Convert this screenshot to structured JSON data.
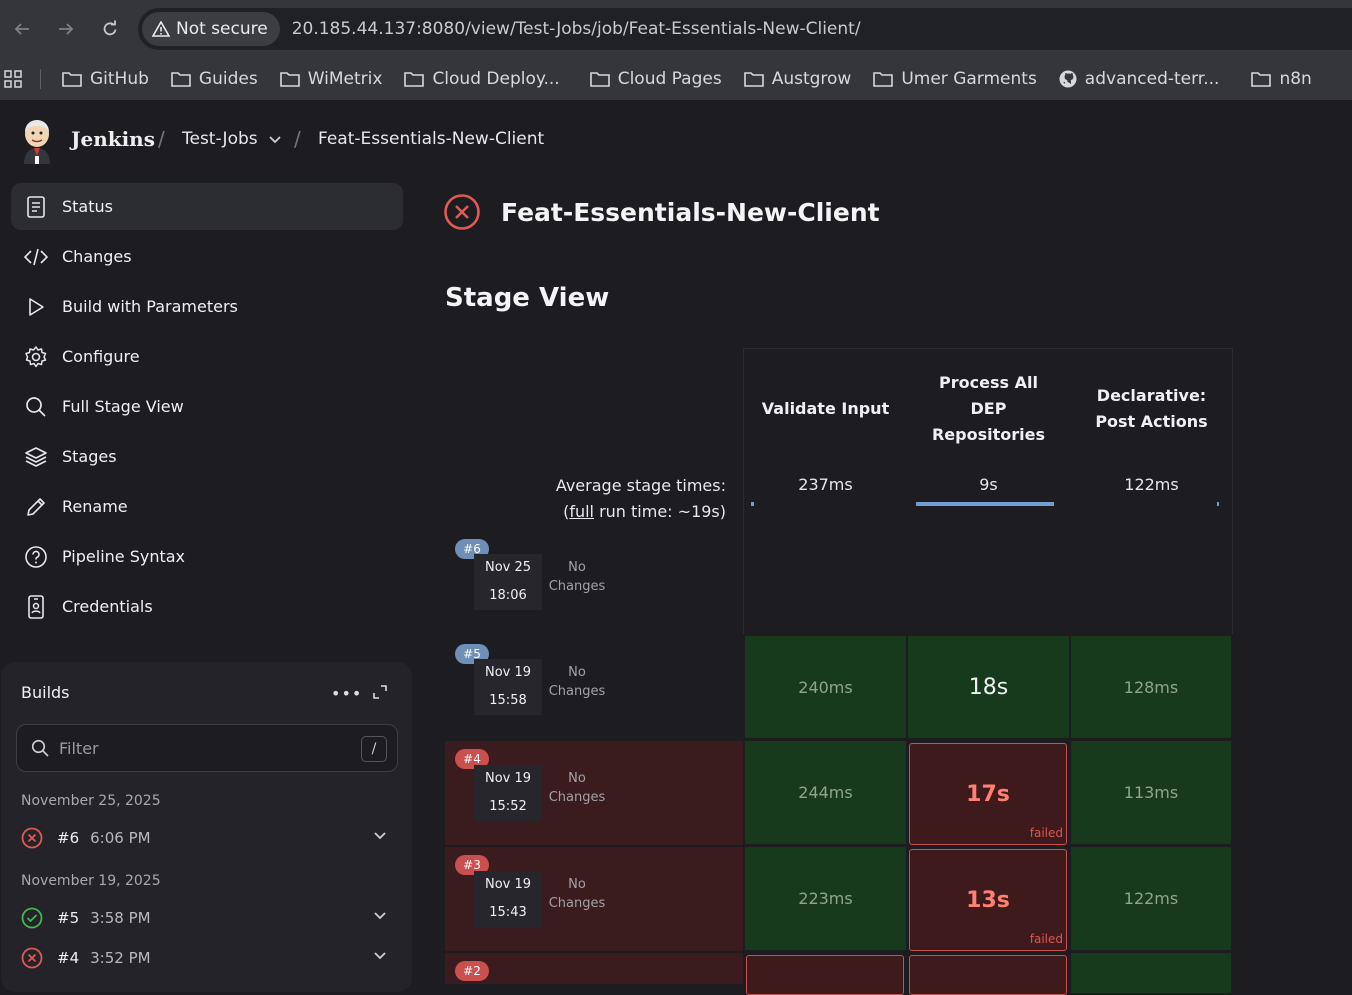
{
  "browser": {
    "security_label": "Not secure",
    "url": "20.185.44.137:8080/view/Test-Jobs/job/Feat-Essentials-New-Client/",
    "bookmarks": [
      "GitHub",
      "Guides",
      "WiMetrix",
      "Cloud Deploy...",
      "Cloud Pages",
      "Austgrow",
      "Umer Garments",
      "advanced-terr...",
      "n8n"
    ]
  },
  "header": {
    "app_name": "Jenkins",
    "breadcrumb": [
      "Test-Jobs",
      "Feat-Essentials-New-Client"
    ]
  },
  "sidebar": {
    "items": [
      {
        "label": "Status",
        "icon": "status-icon"
      },
      {
        "label": "Changes",
        "icon": "code-icon"
      },
      {
        "label": "Build with Parameters",
        "icon": "play-icon"
      },
      {
        "label": "Configure",
        "icon": "gear-icon"
      },
      {
        "label": "Full Stage View",
        "icon": "search-icon"
      },
      {
        "label": "Stages",
        "icon": "layers-icon"
      },
      {
        "label": "Rename",
        "icon": "pencil-icon"
      },
      {
        "label": "Pipeline Syntax",
        "icon": "help-icon"
      },
      {
        "label": "Credentials",
        "icon": "credentials-icon"
      }
    ]
  },
  "builds": {
    "title": "Builds",
    "filter_placeholder": "Filter",
    "filter_shortcut": "/",
    "groups": [
      {
        "date": "November 25, 2025",
        "runs": [
          {
            "num": "#6",
            "time": "6:06 PM",
            "status": "failed"
          }
        ]
      },
      {
        "date": "November 19, 2025",
        "runs": [
          {
            "num": "#5",
            "time": "3:58 PM",
            "status": "success"
          },
          {
            "num": "#4",
            "time": "3:52 PM",
            "status": "failed"
          }
        ]
      }
    ]
  },
  "main": {
    "job_title": "Feat-Essentials-New-Client",
    "stage_view_title": "Stage View",
    "avg_label_1": "Average stage times:",
    "avg_label_full": "full",
    "avg_label_2": " run time: ~19s)",
    "avg_label_open": "(",
    "stages": [
      {
        "name_lines": [
          "Validate Input"
        ],
        "avg": "237ms",
        "avg_fraction": 0.02
      },
      {
        "name_lines": [
          "Process All",
          "DEP",
          "Repositories"
        ],
        "avg": "9s",
        "avg_fraction": 1.0
      },
      {
        "name_lines": [
          "Declarative:",
          "Post Actions"
        ],
        "avg": "122ms",
        "avg_fraction": 0.01
      }
    ],
    "runs": [
      {
        "num": "#6",
        "date": "Nov 25",
        "time": "18:06",
        "changes": [
          "No",
          "Changes"
        ],
        "status": "failed",
        "cells": []
      },
      {
        "num": "#5",
        "date": "Nov 19",
        "time": "15:58",
        "changes": [
          "No",
          "Changes"
        ],
        "status": "success",
        "cells": [
          {
            "text": "240ms",
            "state": "ok"
          },
          {
            "text": "18s",
            "state": "ok"
          },
          {
            "text": "128ms",
            "state": "ok"
          }
        ]
      },
      {
        "num": "#4",
        "date": "Nov 19",
        "time": "15:52",
        "changes": [
          "No",
          "Changes"
        ],
        "status": "failed",
        "cells": [
          {
            "text": "244ms",
            "state": "ok"
          },
          {
            "text": "17s",
            "state": "failed",
            "label": "failed"
          },
          {
            "text": "113ms",
            "state": "ok"
          }
        ]
      },
      {
        "num": "#3",
        "date": "Nov 19",
        "time": "15:43",
        "changes": [
          "No",
          "Changes"
        ],
        "status": "failed",
        "cells": [
          {
            "text": "223ms",
            "state": "ok"
          },
          {
            "text": "13s",
            "state": "failed",
            "label": "failed"
          },
          {
            "text": "122ms",
            "state": "ok"
          }
        ]
      },
      {
        "num": "#2",
        "status": "failed"
      }
    ]
  },
  "colors": {
    "success_cell": "#173a1d",
    "failed_cell": "#3f1a1c",
    "failed_accent": "#c8504e",
    "badge_blue": "#6f8fb8",
    "badge_red": "#c9504e",
    "avg_bar": "#6d9fd6"
  }
}
